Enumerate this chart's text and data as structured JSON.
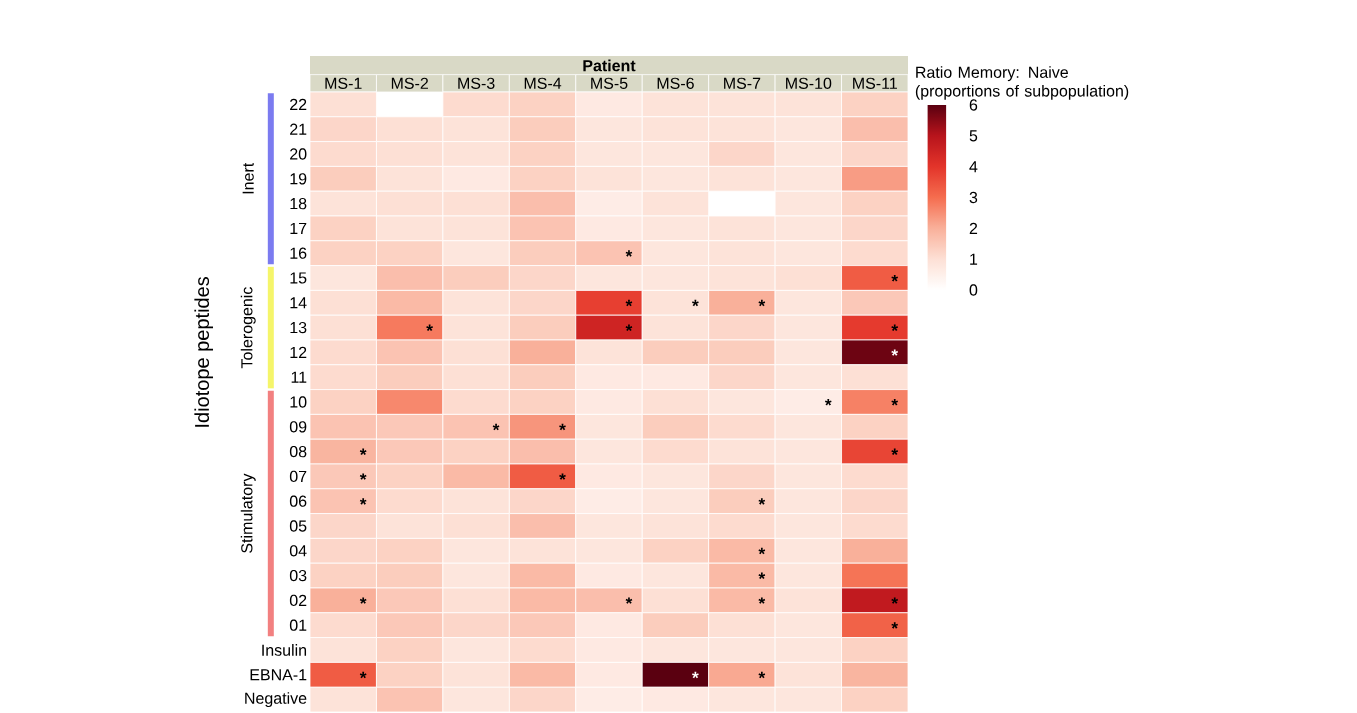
{
  "chart_data": {
    "type": "heatmap",
    "xlabel": "Patient",
    "ylabel": "Idiotope peptides",
    "clabel": "Ratio Memory: Naive (proportions of subpopulation)",
    "categories": [
      "MS-1",
      "MS-2",
      "MS-3",
      "MS-4",
      "MS-5",
      "MS-6",
      "MS-7",
      "MS-10",
      "MS-11"
    ],
    "y_categories": [
      "22",
      "21",
      "20",
      "19",
      "18",
      "17",
      "16",
      "15",
      "14",
      "13",
      "12",
      "11",
      "10",
      "09",
      "08",
      "07",
      "06",
      "05",
      "04",
      "03",
      "02",
      "01",
      "Insulin",
      "EBNA-1",
      "Negative"
    ],
    "cells": [
      [
        1.0,
        null,
        1.1,
        1.3,
        0.7,
        0.9,
        0.9,
        0.9,
        1.3
      ],
      [
        1.2,
        1.0,
        0.9,
        1.4,
        0.8,
        0.9,
        0.9,
        0.8,
        1.7
      ],
      [
        1.1,
        1.0,
        0.9,
        1.3,
        0.8,
        0.8,
        1.2,
        0.8,
        1.2
      ],
      [
        1.4,
        0.9,
        0.7,
        1.3,
        0.9,
        0.8,
        0.9,
        0.8,
        2.3
      ],
      [
        0.9,
        1.0,
        1.0,
        1.7,
        0.6,
        0.9,
        null,
        0.8,
        1.3
      ],
      [
        1.3,
        0.9,
        0.9,
        1.6,
        0.7,
        0.8,
        0.9,
        0.8,
        1.2
      ],
      [
        1.3,
        1.3,
        0.8,
        1.4,
        1.6,
        0.8,
        0.9,
        0.8,
        1.1
      ],
      [
        0.8,
        1.7,
        1.4,
        1.2,
        0.8,
        0.8,
        0.9,
        1.0,
        3.3
      ],
      [
        1.0,
        1.8,
        0.9,
        1.2,
        3.8,
        0.9,
        2.0,
        0.8,
        1.5
      ],
      [
        1.0,
        2.8,
        0.9,
        1.4,
        4.5,
        0.9,
        1.2,
        0.8,
        3.9
      ],
      [
        1.1,
        1.6,
        1.0,
        2.0,
        0.9,
        1.4,
        1.4,
        0.8,
        5.8
      ],
      [
        1.1,
        1.4,
        1.0,
        1.4,
        0.7,
        0.7,
        1.2,
        0.8,
        1.0
      ],
      [
        1.3,
        2.6,
        1.1,
        1.3,
        0.7,
        1.0,
        0.8,
        0.6,
        2.7
      ],
      [
        1.6,
        1.5,
        1.6,
        2.4,
        0.8,
        1.4,
        1.1,
        0.8,
        1.3
      ],
      [
        1.9,
        1.5,
        1.3,
        1.7,
        0.8,
        1.1,
        0.9,
        0.8,
        3.7
      ],
      [
        1.5,
        1.3,
        1.8,
        3.3,
        0.7,
        0.8,
        1.2,
        0.8,
        1.1
      ],
      [
        1.6,
        1.1,
        0.9,
        1.2,
        0.6,
        0.8,
        1.4,
        0.8,
        1.2
      ],
      [
        1.2,
        0.9,
        1.0,
        1.7,
        0.8,
        0.9,
        1.1,
        0.8,
        1.1
      ],
      [
        1.2,
        1.3,
        0.8,
        0.9,
        0.8,
        1.3,
        1.8,
        0.8,
        2.0
      ],
      [
        1.3,
        1.4,
        0.8,
        1.8,
        0.7,
        0.8,
        1.8,
        0.8,
        2.9
      ],
      [
        2.0,
        1.5,
        1.0,
        1.8,
        1.7,
        1.0,
        1.8,
        0.9,
        4.8
      ],
      [
        1.1,
        1.5,
        1.2,
        1.5,
        0.7,
        1.4,
        1.0,
        0.8,
        3.2
      ],
      [
        0.9,
        1.3,
        0.8,
        1.1,
        0.7,
        0.8,
        0.8,
        0.8,
        1.3
      ],
      [
        3.3,
        1.3,
        0.9,
        1.8,
        0.7,
        6.0,
        2.1,
        0.9,
        1.9
      ],
      [
        0.9,
        1.6,
        0.8,
        1.2,
        0.6,
        0.7,
        0.8,
        0.8,
        1.3
      ]
    ],
    "clim": [
      0,
      6
    ],
    "cticks": [
      0,
      1,
      2,
      3,
      4,
      5,
      6
    ],
    "cell_labels": [
      [
        null,
        null,
        null,
        null,
        null,
        null,
        null,
        null,
        null
      ],
      [
        null,
        null,
        null,
        null,
        null,
        null,
        null,
        null,
        null
      ],
      [
        null,
        null,
        null,
        null,
        null,
        null,
        null,
        null,
        null
      ],
      [
        null,
        null,
        null,
        null,
        null,
        null,
        null,
        null,
        null
      ],
      [
        null,
        null,
        null,
        null,
        null,
        null,
        null,
        null,
        null
      ],
      [
        null,
        null,
        null,
        null,
        null,
        null,
        null,
        null,
        null
      ],
      [
        null,
        null,
        null,
        null,
        "*",
        null,
        null,
        null,
        null
      ],
      [
        null,
        null,
        null,
        null,
        null,
        null,
        null,
        null,
        "*"
      ],
      [
        null,
        null,
        null,
        null,
        "*",
        "*",
        "*",
        null,
        null
      ],
      [
        null,
        "*",
        null,
        null,
        "*",
        null,
        null,
        null,
        "*"
      ],
      [
        null,
        null,
        null,
        null,
        null,
        null,
        null,
        null,
        "*"
      ],
      [
        null,
        null,
        null,
        null,
        null,
        null,
        null,
        null,
        null
      ],
      [
        null,
        null,
        null,
        null,
        null,
        null,
        null,
        "*",
        "*"
      ],
      [
        null,
        null,
        "*",
        "*",
        null,
        null,
        null,
        null,
        null
      ],
      [
        "*",
        null,
        null,
        null,
        null,
        null,
        null,
        null,
        "*"
      ],
      [
        "*",
        null,
        null,
        "*",
        null,
        null,
        null,
        null,
        null
      ],
      [
        "*",
        null,
        null,
        null,
        null,
        null,
        "*",
        null,
        null
      ],
      [
        null,
        null,
        null,
        null,
        null,
        null,
        null,
        null,
        null
      ],
      [
        null,
        null,
        null,
        null,
        null,
        null,
        "*",
        null,
        null
      ],
      [
        null,
        null,
        null,
        null,
        null,
        null,
        "*",
        null,
        null
      ],
      [
        "*",
        null,
        null,
        null,
        "*",
        null,
        "*",
        null,
        "*"
      ],
      [
        null,
        null,
        null,
        null,
        null,
        null,
        null,
        null,
        "*"
      ],
      [
        null,
        null,
        null,
        null,
        null,
        null,
        null,
        null,
        null
      ],
      [
        "*",
        null,
        null,
        null,
        null,
        "*",
        "*",
        null,
        null
      ],
      [
        null,
        null,
        null,
        null,
        null,
        null,
        null,
        null,
        null
      ]
    ],
    "annotations": [
      "Inert",
      "Tolerogenic",
      "Stimulatory"
    ]
  }
}
